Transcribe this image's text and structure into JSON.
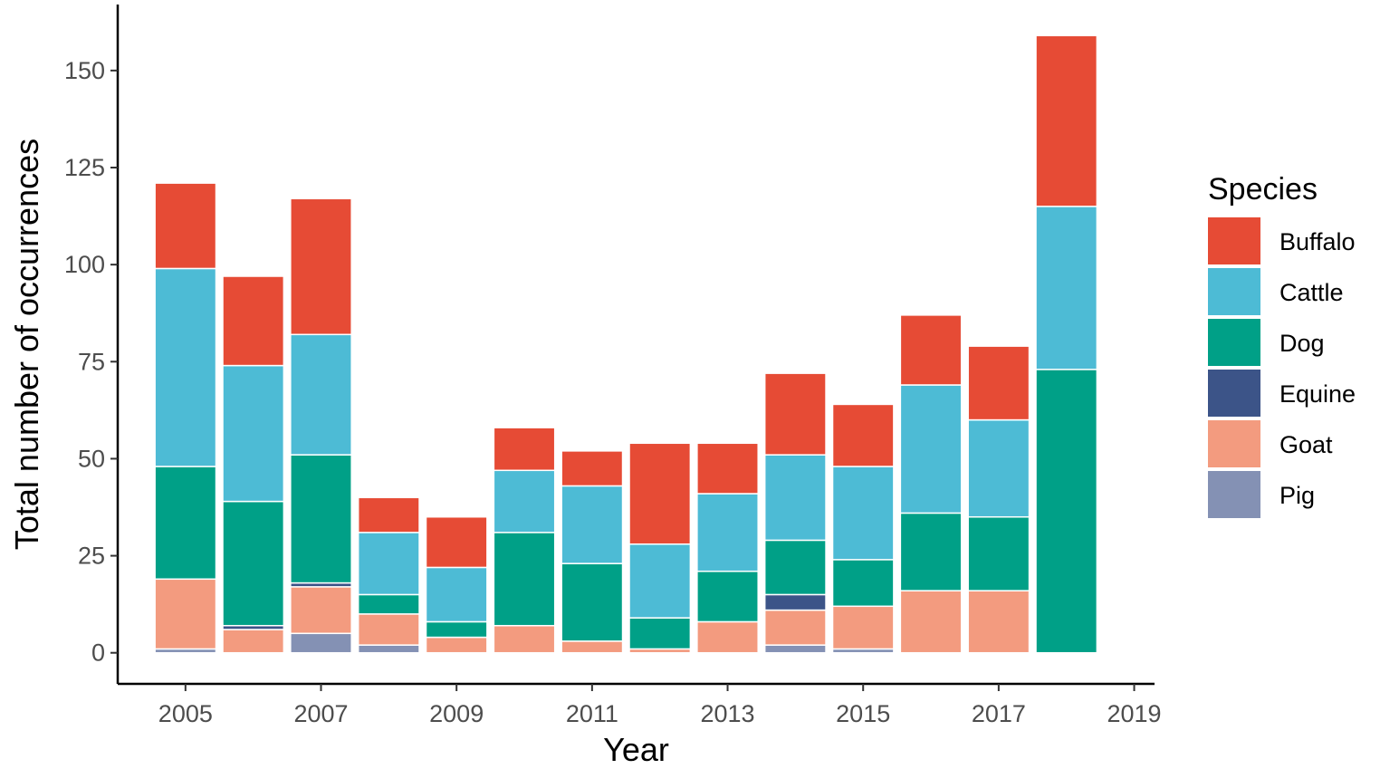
{
  "chart_data": {
    "type": "bar",
    "stacked": true,
    "title": "",
    "xlabel": "Year",
    "ylabel": "Total number of occurrences",
    "x": [
      2005,
      2006,
      2007,
      2008,
      2009,
      2010,
      2011,
      2012,
      2013,
      2014,
      2015,
      2016,
      2017,
      2018
    ],
    "xlim": [
      2004.0,
      2019.3
    ],
    "xticks": [
      "2005",
      "2007",
      "2009",
      "2011",
      "2013",
      "2015",
      "2017",
      "2019"
    ],
    "ylim": [
      -8,
      167
    ],
    "yticks": [
      "0",
      "25",
      "50",
      "75",
      "100",
      "125",
      "150"
    ],
    "grid": false,
    "legend_position": "right",
    "legend_title": "Species",
    "series": [
      {
        "name": "Pig",
        "color": "#8491B4",
        "values": [
          1,
          0,
          5,
          2,
          0,
          0,
          0,
          0,
          0,
          2,
          1,
          0,
          0,
          0
        ]
      },
      {
        "name": "Goat",
        "color": "#F39B7F",
        "values": [
          18,
          6,
          12,
          8,
          4,
          7,
          3,
          1,
          8,
          9,
          11,
          16,
          16,
          0
        ]
      },
      {
        "name": "Equine",
        "color": "#3C5488",
        "values": [
          0,
          1,
          1,
          0,
          0,
          0,
          0,
          0,
          0,
          4,
          0,
          0,
          0,
          0
        ]
      },
      {
        "name": "Dog",
        "color": "#00A087",
        "values": [
          29,
          32,
          33,
          5,
          4,
          24,
          20,
          8,
          13,
          14,
          12,
          20,
          19,
          73
        ]
      },
      {
        "name": "Cattle",
        "color": "#4DBBD5",
        "values": [
          51,
          35,
          31,
          16,
          14,
          16,
          20,
          19,
          20,
          22,
          24,
          33,
          25,
          42
        ]
      },
      {
        "name": "Buffalo",
        "color": "#E64B35",
        "values": [
          22,
          23,
          35,
          9,
          13,
          11,
          9,
          26,
          13,
          21,
          16,
          18,
          19,
          44
        ]
      }
    ],
    "legend_order": [
      "Buffalo",
      "Cattle",
      "Dog",
      "Equine",
      "Goat",
      "Pig"
    ]
  }
}
